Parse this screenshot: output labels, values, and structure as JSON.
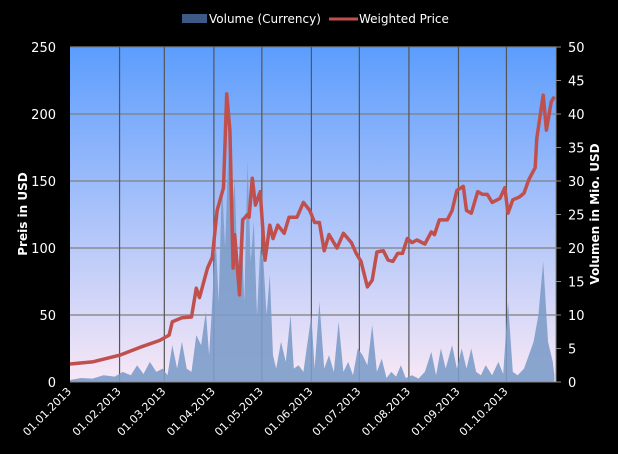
{
  "chart_data": {
    "type": "line",
    "legend_position": "top",
    "grid": true,
    "xlim": [
      "2013-01-01",
      "2013-11-01"
    ],
    "x_tick_labels": [
      "01.01.2013",
      "01.02.2013",
      "01.03.2013",
      "01.04.2013",
      "01.05.2013",
      "01.06.2013",
      "01.07.2013",
      "01.08.2013",
      "01.09.2013",
      "01.10.2013"
    ],
    "x_ticks": [
      "2013-01-01",
      "2013-02-01",
      "2013-03-01",
      "2013-04-01",
      "2013-05-01",
      "2013-06-01",
      "2013-07-01",
      "2013-08-01",
      "2013-09-01",
      "2013-10-01"
    ],
    "ylabel_left": "Preis in USD",
    "ylabel_right": "Volumen in Mio. USD",
    "ylim_left": [
      0,
      250
    ],
    "ylim_right": [
      0,
      50
    ],
    "y_ticks_left": [
      "0",
      "50",
      "100",
      "150",
      "200",
      "250"
    ],
    "y_ticks_right": [
      "0",
      "5",
      "10",
      "15",
      "20",
      "25",
      "30",
      "35",
      "40",
      "45",
      "50"
    ],
    "colors": {
      "background_top": "#5c9dfd",
      "background_bottom": "#f8e8f6",
      "grid": "#7f7f7f",
      "volume": "#7d9cc9",
      "volume_legend": "#3d5a87",
      "price": "#c0504d"
    },
    "series": [
      {
        "name": "Volume (Currency)",
        "axis": "right",
        "type": "area",
        "points": [
          [
            "2013-01-01",
            0.3
          ],
          [
            "2013-01-08",
            0.6
          ],
          [
            "2013-01-15",
            0.5
          ],
          [
            "2013-01-22",
            1.0
          ],
          [
            "2013-01-29",
            0.8
          ],
          [
            "2013-02-03",
            1.5
          ],
          [
            "2013-02-08",
            1.0
          ],
          [
            "2013-02-12",
            2.5
          ],
          [
            "2013-02-16",
            1.2
          ],
          [
            "2013-02-20",
            3.0
          ],
          [
            "2013-02-24",
            1.5
          ],
          [
            "2013-02-28",
            2.0
          ],
          [
            "2013-03-03",
            1.0
          ],
          [
            "2013-03-06",
            5.5
          ],
          [
            "2013-03-09",
            2.0
          ],
          [
            "2013-03-12",
            6.0
          ],
          [
            "2013-03-15",
            2.0
          ],
          [
            "2013-03-18",
            1.5
          ],
          [
            "2013-03-21",
            7.0
          ],
          [
            "2013-03-24",
            5.5
          ],
          [
            "2013-03-27",
            10.5
          ],
          [
            "2013-03-29",
            4.0
          ],
          [
            "2013-03-31",
            12.0
          ],
          [
            "2013-04-02",
            22.0
          ],
          [
            "2013-04-04",
            12.0
          ],
          [
            "2013-04-06",
            30.0
          ],
          [
            "2013-04-08",
            20.0
          ],
          [
            "2013-04-10",
            34.0
          ],
          [
            "2013-04-12",
            24.0
          ],
          [
            "2013-04-14",
            30.0
          ],
          [
            "2013-04-16",
            15.0
          ],
          [
            "2013-04-18",
            25.0
          ],
          [
            "2013-04-20",
            12.0
          ],
          [
            "2013-04-22",
            33.0
          ],
          [
            "2013-04-24",
            18.0
          ],
          [
            "2013-04-26",
            24.0
          ],
          [
            "2013-04-28",
            10.0
          ],
          [
            "2013-04-30",
            20.0
          ],
          [
            "2013-05-02",
            18.0
          ],
          [
            "2013-05-04",
            10.0
          ],
          [
            "2013-05-06",
            16.0
          ],
          [
            "2013-05-08",
            4.0
          ],
          [
            "2013-05-10",
            2.0
          ],
          [
            "2013-05-13",
            6.0
          ],
          [
            "2013-05-16",
            3.0
          ],
          [
            "2013-05-19",
            10.0
          ],
          [
            "2013-05-21",
            2.0
          ],
          [
            "2013-05-24",
            2.5
          ],
          [
            "2013-05-27",
            1.5
          ],
          [
            "2013-06-01",
            10.0
          ],
          [
            "2013-06-03",
            2.0
          ],
          [
            "2013-06-06",
            12.0
          ],
          [
            "2013-06-09",
            2.0
          ],
          [
            "2013-06-12",
            4.0
          ],
          [
            "2013-06-15",
            1.5
          ],
          [
            "2013-06-18",
            9.0
          ],
          [
            "2013-06-21",
            1.5
          ],
          [
            "2013-06-24",
            3.0
          ],
          [
            "2013-06-27",
            1.0
          ],
          [
            "2013-06-30",
            5.0
          ],
          [
            "2013-07-03",
            4.0
          ],
          [
            "2013-07-06",
            2.5
          ],
          [
            "2013-07-09",
            8.5
          ],
          [
            "2013-07-12",
            1.5
          ],
          [
            "2013-07-15",
            3.5
          ],
          [
            "2013-07-18",
            0.6
          ],
          [
            "2013-07-21",
            1.5
          ],
          [
            "2013-07-24",
            0.8
          ],
          [
            "2013-07-27",
            2.5
          ],
          [
            "2013-07-30",
            0.6
          ],
          [
            "2013-08-03",
            1.0
          ],
          [
            "2013-08-07",
            0.5
          ],
          [
            "2013-08-11",
            1.5
          ],
          [
            "2013-08-15",
            4.5
          ],
          [
            "2013-08-18",
            1.0
          ],
          [
            "2013-08-21",
            5.0
          ],
          [
            "2013-08-24",
            2.0
          ],
          [
            "2013-08-28",
            5.5
          ],
          [
            "2013-08-31",
            2.0
          ],
          [
            "2013-09-03",
            5.0
          ],
          [
            "2013-09-06",
            2.0
          ],
          [
            "2013-09-09",
            5.0
          ],
          [
            "2013-09-12",
            1.5
          ],
          [
            "2013-09-15",
            1.0
          ],
          [
            "2013-09-18",
            2.5
          ],
          [
            "2013-09-22",
            1.0
          ],
          [
            "2013-09-26",
            3.0
          ],
          [
            "2013-09-29",
            1.2
          ],
          [
            "2013-10-02",
            12.0
          ],
          [
            "2013-10-05",
            1.5
          ],
          [
            "2013-10-08",
            1.0
          ],
          [
            "2013-10-12",
            2.0
          ],
          [
            "2013-10-15",
            4.0
          ],
          [
            "2013-10-18",
            6.0
          ],
          [
            "2013-10-21",
            10.0
          ],
          [
            "2013-10-24",
            18.0
          ],
          [
            "2013-10-27",
            6.0
          ],
          [
            "2013-10-30",
            3.0
          ],
          [
            "2013-10-31",
            1.0
          ]
        ]
      },
      {
        "name": "Weighted Price",
        "axis": "left",
        "type": "line",
        "points": [
          [
            "2013-01-01",
            13.4
          ],
          [
            "2013-01-15",
            15
          ],
          [
            "2013-02-01",
            20
          ],
          [
            "2013-02-14",
            26
          ],
          [
            "2013-02-26",
            31
          ],
          [
            "2013-03-04",
            35
          ],
          [
            "2013-03-06",
            45
          ],
          [
            "2013-03-12",
            48
          ],
          [
            "2013-03-18",
            48.5
          ],
          [
            "2013-03-21",
            70
          ],
          [
            "2013-03-23",
            63
          ],
          [
            "2013-03-28",
            85
          ],
          [
            "2013-03-31",
            93
          ],
          [
            "2013-04-03",
            128
          ],
          [
            "2013-04-07",
            145
          ],
          [
            "2013-04-09",
            215
          ],
          [
            "2013-04-11",
            188
          ],
          [
            "2013-04-13",
            85
          ],
          [
            "2013-04-14",
            110
          ],
          [
            "2013-04-17",
            65
          ],
          [
            "2013-04-19",
            121
          ],
          [
            "2013-04-22",
            125
          ],
          [
            "2013-04-23",
            123
          ],
          [
            "2013-04-25",
            152
          ],
          [
            "2013-04-27",
            132
          ],
          [
            "2013-04-30",
            142
          ],
          [
            "2013-05-03",
            91
          ],
          [
            "2013-05-06",
            117
          ],
          [
            "2013-05-08",
            107
          ],
          [
            "2013-05-11",
            117
          ],
          [
            "2013-05-15",
            111
          ],
          [
            "2013-05-18",
            123
          ],
          [
            "2013-05-23",
            123
          ],
          [
            "2013-05-27",
            134
          ],
          [
            "2013-05-31",
            128
          ],
          [
            "2013-06-03",
            119
          ],
          [
            "2013-06-06",
            119
          ],
          [
            "2013-06-09",
            98
          ],
          [
            "2013-06-12",
            110
          ],
          [
            "2013-06-17",
            100
          ],
          [
            "2013-06-21",
            111
          ],
          [
            "2013-06-26",
            104
          ],
          [
            "2013-06-29",
            96
          ],
          [
            "2013-07-02",
            90
          ],
          [
            "2013-07-06",
            71
          ],
          [
            "2013-07-09",
            76
          ],
          [
            "2013-07-12",
            97
          ],
          [
            "2013-07-16",
            98
          ],
          [
            "2013-07-19",
            91
          ],
          [
            "2013-07-22",
            90
          ],
          [
            "2013-07-25",
            96
          ],
          [
            "2013-07-28",
            96
          ],
          [
            "2013-07-31",
            107
          ],
          [
            "2013-08-03",
            104
          ],
          [
            "2013-08-06",
            106
          ],
          [
            "2013-08-11",
            103
          ],
          [
            "2013-08-15",
            112
          ],
          [
            "2013-08-17",
            110
          ],
          [
            "2013-08-20",
            121
          ],
          [
            "2013-08-25",
            121
          ],
          [
            "2013-08-28",
            128
          ],
          [
            "2013-08-31",
            143
          ],
          [
            "2013-09-04",
            146
          ],
          [
            "2013-09-06",
            128
          ],
          [
            "2013-09-09",
            126
          ],
          [
            "2013-09-13",
            142
          ],
          [
            "2013-09-16",
            140
          ],
          [
            "2013-09-19",
            140
          ],
          [
            "2013-09-22",
            134
          ],
          [
            "2013-09-27",
            137
          ],
          [
            "2013-09-30",
            145
          ],
          [
            "2013-10-02",
            126
          ],
          [
            "2013-10-05",
            136
          ],
          [
            "2013-10-09",
            138
          ],
          [
            "2013-10-12",
            141
          ],
          [
            "2013-10-15",
            151
          ],
          [
            "2013-10-19",
            160
          ],
          [
            "2013-10-20",
            182
          ],
          [
            "2013-10-24",
            214
          ],
          [
            "2013-10-26",
            188
          ],
          [
            "2013-10-29",
            209
          ],
          [
            "2013-10-31",
            213
          ]
        ]
      }
    ]
  }
}
